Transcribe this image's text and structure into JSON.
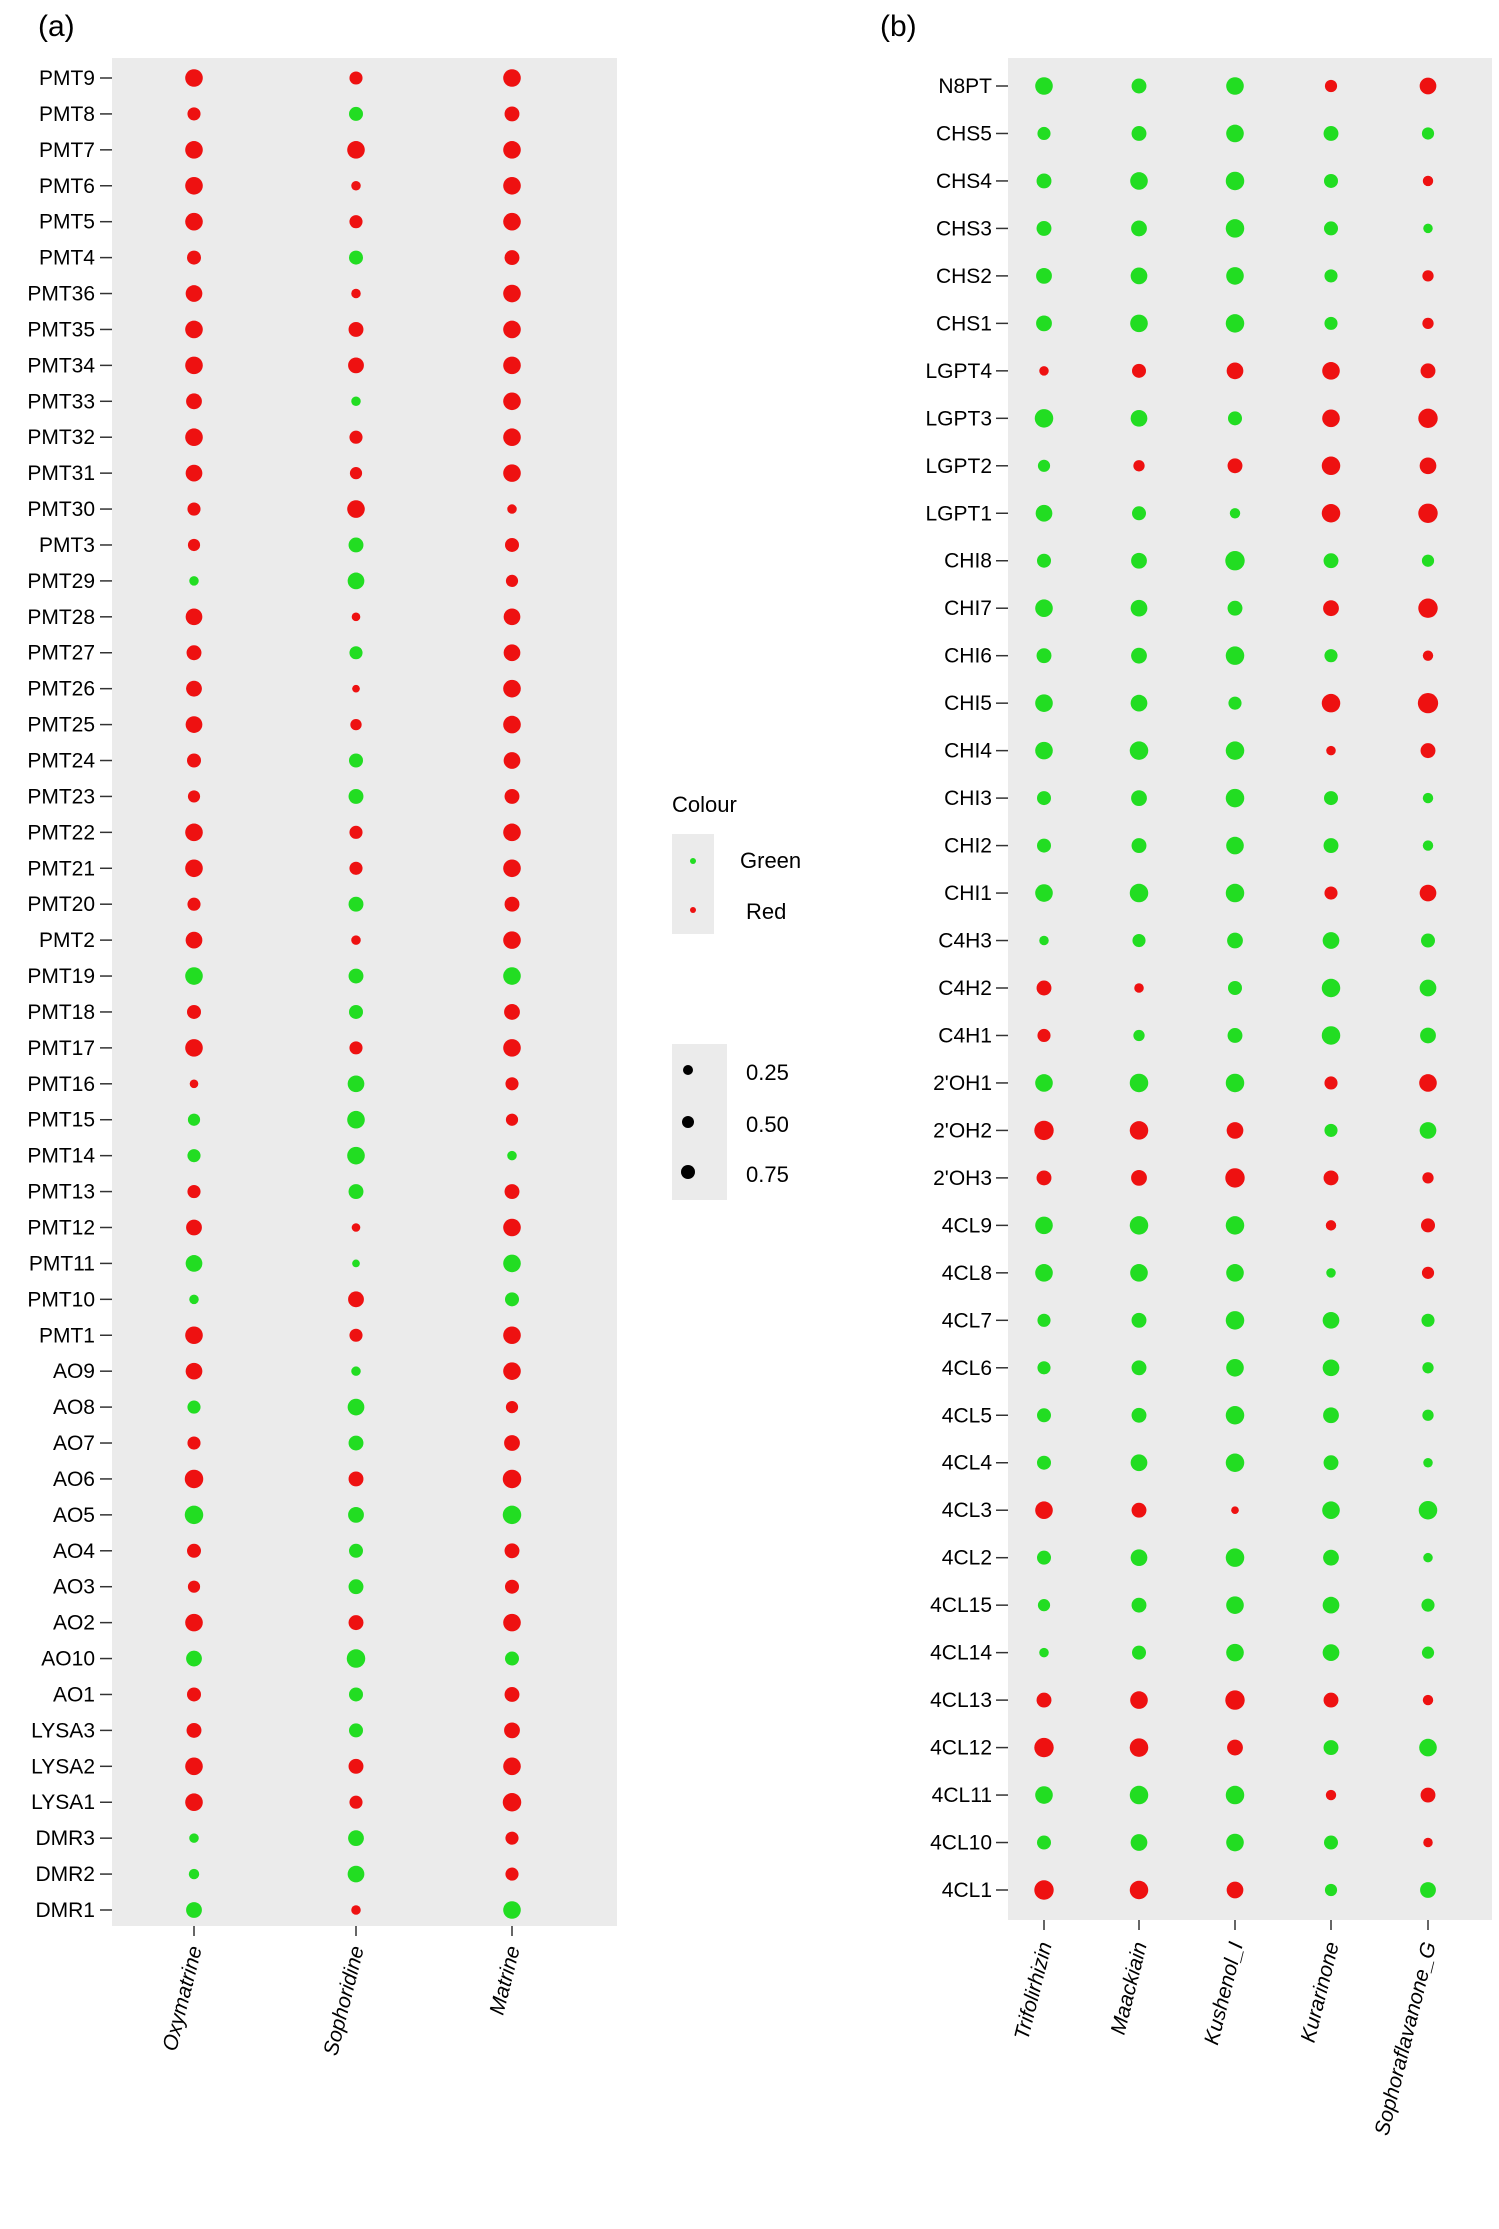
{
  "figure_colors": {
    "green": "#22dd22",
    "red": "#ee1111",
    "panel_bg": "#ebebeb",
    "black": "#000000"
  },
  "legend": {
    "colour_title": "Colour",
    "colour_items": [
      {
        "label": "Green",
        "color": "#22dd22"
      },
      {
        "label": "Red",
        "color": "#ee1111"
      }
    ],
    "size_items": [
      {
        "label": "0.25",
        "value": 0.25
      },
      {
        "label": "0.50",
        "value": 0.5
      },
      {
        "label": "0.75",
        "value": 0.75
      }
    ]
  },
  "chart_data": [
    {
      "type": "scatter",
      "panel_label": "(a)",
      "x_categories": [
        "Oxymatrine",
        "Sophoridine",
        "Matrine"
      ],
      "y_categories": [
        "PMT9",
        "PMT8",
        "PMT7",
        "PMT6",
        "PMT5",
        "PMT4",
        "PMT36",
        "PMT35",
        "PMT34",
        "PMT33",
        "PMT32",
        "PMT31",
        "PMT30",
        "PMT3",
        "PMT29",
        "PMT28",
        "PMT27",
        "PMT26",
        "PMT25",
        "PMT24",
        "PMT23",
        "PMT22",
        "PMT21",
        "PMT20",
        "PMT2",
        "PMT19",
        "PMT18",
        "PMT17",
        "PMT16",
        "PMT15",
        "PMT14",
        "PMT13",
        "PMT12",
        "PMT11",
        "PMT10",
        "PMT1",
        "AO9",
        "AO8",
        "AO7",
        "AO6",
        "AO5",
        "AO4",
        "AO3",
        "AO2",
        "AO10",
        "AO1",
        "LYSA3",
        "LYSA2",
        "LYSA1",
        "DMR3",
        "DMR2",
        "DMR1"
      ],
      "points": [
        [
          "R",
          0.7,
          "R",
          0.45,
          "R",
          0.7
        ],
        [
          "R",
          0.45,
          "G",
          0.5,
          "R",
          0.55
        ],
        [
          "R",
          0.7,
          "R",
          0.7,
          "R",
          0.7
        ],
        [
          "R",
          0.7,
          "R",
          0.25,
          "R",
          0.7
        ],
        [
          "R",
          0.7,
          "R",
          0.45,
          "R",
          0.7
        ],
        [
          "R",
          0.5,
          "G",
          0.5,
          "R",
          0.55
        ],
        [
          "R",
          0.65,
          "R",
          0.25,
          "R",
          0.7
        ],
        [
          "R",
          0.7,
          "R",
          0.55,
          "R",
          0.7
        ],
        [
          "R",
          0.7,
          "R",
          0.6,
          "R",
          0.7
        ],
        [
          "R",
          0.6,
          "G",
          0.25,
          "R",
          0.7
        ],
        [
          "R",
          0.7,
          "R",
          0.45,
          "R",
          0.7
        ],
        [
          "R",
          0.65,
          "R",
          0.4,
          "R",
          0.7
        ],
        [
          "R",
          0.45,
          "R",
          0.7,
          "R",
          0.25
        ],
        [
          "R",
          0.4,
          "G",
          0.55,
          "R",
          0.5
        ],
        [
          "G",
          0.25,
          "G",
          0.65,
          "R",
          0.4
        ],
        [
          "R",
          0.65,
          "R",
          0.2,
          "R",
          0.65
        ],
        [
          "R",
          0.55,
          "G",
          0.45,
          "R",
          0.65
        ],
        [
          "R",
          0.6,
          "R",
          0.15,
          "R",
          0.7
        ],
        [
          "R",
          0.65,
          "R",
          0.35,
          "R",
          0.7
        ],
        [
          "R",
          0.5,
          "G",
          0.5,
          "R",
          0.65
        ],
        [
          "R",
          0.4,
          "G",
          0.55,
          "R",
          0.55
        ],
        [
          "R",
          0.7,
          "R",
          0.45,
          "R",
          0.7
        ],
        [
          "R",
          0.7,
          "R",
          0.45,
          "R",
          0.7
        ],
        [
          "R",
          0.45,
          "G",
          0.55,
          "R",
          0.55
        ],
        [
          "R",
          0.65,
          "R",
          0.25,
          "R",
          0.7
        ],
        [
          "G",
          0.7,
          "G",
          0.55,
          "G",
          0.7
        ],
        [
          "R",
          0.5,
          "G",
          0.5,
          "R",
          0.6
        ],
        [
          "R",
          0.7,
          "R",
          0.45,
          "R",
          0.7
        ],
        [
          "R",
          0.2,
          "G",
          0.65,
          "R",
          0.45
        ],
        [
          "G",
          0.4,
          "G",
          0.7,
          "R",
          0.4
        ],
        [
          "G",
          0.45,
          "G",
          0.7,
          "G",
          0.25
        ],
        [
          "R",
          0.45,
          "G",
          0.55,
          "R",
          0.55
        ],
        [
          "R",
          0.6,
          "R",
          0.2,
          "R",
          0.7
        ],
        [
          "G",
          0.65,
          "G",
          0.15,
          "G",
          0.7
        ],
        [
          "G",
          0.25,
          "R",
          0.6,
          "G",
          0.5
        ],
        [
          "R",
          0.7,
          "R",
          0.45,
          "R",
          0.7
        ],
        [
          "R",
          0.65,
          "G",
          0.25,
          "R",
          0.7
        ],
        [
          "G",
          0.45,
          "G",
          0.65,
          "R",
          0.4
        ],
        [
          "R",
          0.45,
          "G",
          0.55,
          "R",
          0.6
        ],
        [
          "R",
          0.75,
          "R",
          0.55,
          "R",
          0.75
        ],
        [
          "G",
          0.75,
          "G",
          0.6,
          "G",
          0.75
        ],
        [
          "R",
          0.5,
          "G",
          0.5,
          "R",
          0.55
        ],
        [
          "R",
          0.4,
          "G",
          0.55,
          "R",
          0.5
        ],
        [
          "R",
          0.7,
          "R",
          0.55,
          "R",
          0.7
        ],
        [
          "G",
          0.6,
          "G",
          0.75,
          "G",
          0.5
        ],
        [
          "R",
          0.5,
          "G",
          0.5,
          "R",
          0.55
        ],
        [
          "R",
          0.55,
          "G",
          0.5,
          "R",
          0.6
        ],
        [
          "R",
          0.7,
          "R",
          0.55,
          "R",
          0.7
        ],
        [
          "R",
          0.7,
          "R",
          0.45,
          "R",
          0.75
        ],
        [
          "G",
          0.25,
          "G",
          0.6,
          "R",
          0.45
        ],
        [
          "G",
          0.3,
          "G",
          0.65,
          "R",
          0.45
        ],
        [
          "G",
          0.6,
          "R",
          0.25,
          "G",
          0.7
        ]
      ]
    },
    {
      "type": "scatter",
      "panel_label": "(b)",
      "x_categories": [
        "Trifolirhizin",
        "Maackiain",
        "Kushenol_I",
        "Kurarinone",
        "Sophoraflavanone_G"
      ],
      "y_categories": [
        "N8PT",
        "CHS5",
        "CHS4",
        "CHS3",
        "CHS2",
        "CHS1",
        "LGPT4",
        "LGPT3",
        "LGPT2",
        "LGPT1",
        "CHI8",
        "CHI7",
        "CHI6",
        "CHI5",
        "CHI4",
        "CHI3",
        "CHI2",
        "CHI1",
        "C4H3",
        "C4H2",
        "C4H1",
        "2'OH1",
        "2'OH2",
        "2'OH3",
        "4CL9",
        "4CL8",
        "4CL7",
        "4CL6",
        "4CL5",
        "4CL4",
        "4CL3",
        "4CL2",
        "4CL15",
        "4CL14",
        "4CL13",
        "4CL12",
        "4CL11",
        "4CL10",
        "4CL1"
      ],
      "points": [
        [
          "G",
          0.7,
          "G",
          0.55,
          "G",
          0.7,
          "R",
          0.4,
          "R",
          0.65
        ],
        [
          "G",
          0.45,
          "G",
          0.55,
          "G",
          0.7,
          "G",
          0.55,
          "G",
          0.4
        ],
        [
          "G",
          0.55,
          "G",
          0.7,
          "G",
          0.75,
          "G",
          0.5,
          "R",
          0.3
        ],
        [
          "G",
          0.55,
          "G",
          0.6,
          "G",
          0.75,
          "G",
          0.5,
          "G",
          0.25
        ],
        [
          "G",
          0.6,
          "G",
          0.65,
          "G",
          0.7,
          "G",
          0.45,
          "R",
          0.35
        ],
        [
          "G",
          0.6,
          "G",
          0.7,
          "G",
          0.75,
          "G",
          0.45,
          "R",
          0.35
        ],
        [
          "R",
          0.25,
          "R",
          0.5,
          "R",
          0.65,
          "R",
          0.7,
          "R",
          0.55
        ],
        [
          "G",
          0.75,
          "G",
          0.65,
          "G",
          0.5,
          "R",
          0.7,
          "R",
          0.8
        ],
        [
          "G",
          0.4,
          "R",
          0.35,
          "R",
          0.55,
          "R",
          0.75,
          "R",
          0.65
        ],
        [
          "G",
          0.65,
          "G",
          0.5,
          "G",
          0.3,
          "R",
          0.75,
          "R",
          0.8
        ],
        [
          "G",
          0.5,
          "G",
          0.6,
          "G",
          0.8,
          "G",
          0.55,
          "G",
          0.4
        ],
        [
          "G",
          0.7,
          "G",
          0.65,
          "G",
          0.55,
          "R",
          0.6,
          "R",
          0.8
        ],
        [
          "G",
          0.55,
          "G",
          0.6,
          "G",
          0.75,
          "G",
          0.45,
          "R",
          0.3
        ],
        [
          "G",
          0.7,
          "G",
          0.65,
          "G",
          0.45,
          "R",
          0.75,
          "R",
          0.85
        ],
        [
          "G",
          0.7,
          "G",
          0.75,
          "G",
          0.75,
          "R",
          0.25,
          "R",
          0.55
        ],
        [
          "G",
          0.5,
          "G",
          0.6,
          "G",
          0.75,
          "G",
          0.5,
          "G",
          0.3
        ],
        [
          "G",
          0.5,
          "G",
          0.55,
          "G",
          0.7,
          "G",
          0.55,
          "G",
          0.3
        ],
        [
          "G",
          0.7,
          "G",
          0.75,
          "G",
          0.75,
          "R",
          0.45,
          "R",
          0.65
        ],
        [
          "G",
          0.25,
          "G",
          0.45,
          "G",
          0.6,
          "G",
          0.65,
          "G",
          0.5
        ],
        [
          "R",
          0.55,
          "R",
          0.25,
          "G",
          0.5,
          "G",
          0.75,
          "G",
          0.65
        ],
        [
          "R",
          0.45,
          "G",
          0.35,
          "G",
          0.55,
          "G",
          0.75,
          "G",
          0.6
        ],
        [
          "G",
          0.7,
          "G",
          0.75,
          "G",
          0.75,
          "R",
          0.45,
          "R",
          0.7
        ],
        [
          "R",
          0.8,
          "R",
          0.75,
          "R",
          0.65,
          "G",
          0.45,
          "G",
          0.65
        ],
        [
          "R",
          0.55,
          "R",
          0.6,
          "R",
          0.8,
          "R",
          0.55,
          "R",
          0.35
        ],
        [
          "G",
          0.7,
          "G",
          0.75,
          "G",
          0.75,
          "R",
          0.3,
          "R",
          0.5
        ],
        [
          "G",
          0.7,
          "G",
          0.7,
          "G",
          0.7,
          "G",
          0.25,
          "R",
          0.4
        ],
        [
          "G",
          0.45,
          "G",
          0.55,
          "G",
          0.75,
          "G",
          0.65,
          "G",
          0.45
        ],
        [
          "G",
          0.45,
          "G",
          0.55,
          "G",
          0.7,
          "G",
          0.65,
          "G",
          0.35
        ],
        [
          "G",
          0.5,
          "G",
          0.55,
          "G",
          0.75,
          "G",
          0.6,
          "G",
          0.35
        ],
        [
          "G",
          0.5,
          "G",
          0.65,
          "G",
          0.75,
          "G",
          0.55,
          "G",
          0.25
        ],
        [
          "R",
          0.7,
          "R",
          0.55,
          "R",
          0.15,
          "G",
          0.7,
          "G",
          0.75
        ],
        [
          "G",
          0.5,
          "G",
          0.65,
          "G",
          0.75,
          "G",
          0.6,
          "G",
          0.25
        ],
        [
          "G",
          0.4,
          "G",
          0.55,
          "G",
          0.7,
          "G",
          0.65,
          "G",
          0.45
        ],
        [
          "G",
          0.25,
          "G",
          0.5,
          "G",
          0.7,
          "G",
          0.65,
          "G",
          0.4
        ],
        [
          "R",
          0.55,
          "R",
          0.7,
          "R",
          0.8,
          "R",
          0.55,
          "R",
          0.3
        ],
        [
          "R",
          0.8,
          "R",
          0.75,
          "R",
          0.6,
          "G",
          0.55,
          "G",
          0.7
        ],
        [
          "G",
          0.7,
          "G",
          0.75,
          "G",
          0.75,
          "R",
          0.3,
          "R",
          0.55
        ],
        [
          "G",
          0.5,
          "G",
          0.65,
          "G",
          0.7,
          "G",
          0.5,
          "R",
          0.25
        ],
        [
          "R",
          0.8,
          "R",
          0.75,
          "R",
          0.65,
          "G",
          0.4,
          "G",
          0.6
        ]
      ]
    }
  ]
}
